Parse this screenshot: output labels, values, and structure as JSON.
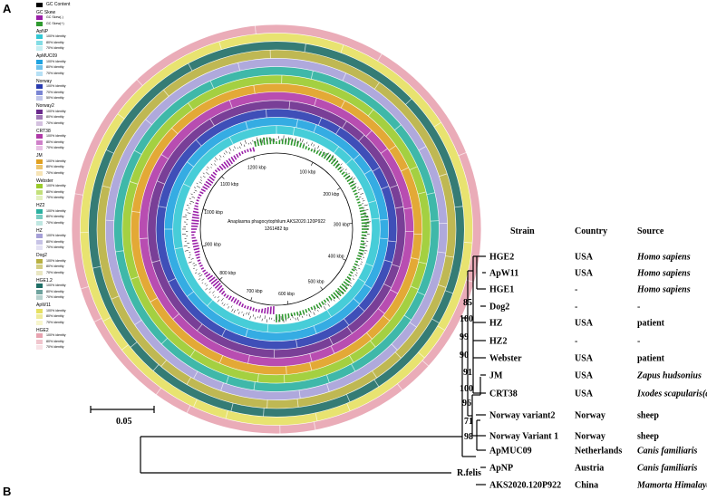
{
  "panel_labels": {
    "a": "A",
    "b": "B"
  },
  "legend": {
    "gc_content": {
      "label": "GC Content",
      "color": "#000000"
    },
    "gc_skew": {
      "title": "GC Skew",
      "items": [
        {
          "label": "GC Skew(-)",
          "color": "#9a1fa8"
        },
        {
          "label": "GC Skew(+)",
          "color": "#2f9a2f"
        }
      ]
    },
    "groups": [
      {
        "title": "ApNP",
        "colors": [
          "#33c8d4",
          "#83dde5",
          "#c6eef2"
        ],
        "labels": [
          "100% identity",
          "80% identity",
          "70% identity"
        ]
      },
      {
        "title": "ApMUC09",
        "colors": [
          "#1fa3e0",
          "#6fc2ec",
          "#b6e0f5"
        ],
        "labels": [
          "100% identity",
          "80% identity",
          "70% identity"
        ]
      },
      {
        "title": "Norway",
        "colors": [
          "#2a3cb0",
          "#7a85d4",
          "#c1c6ea"
        ],
        "labels": [
          "100% identity",
          "70% identity",
          "50% identity"
        ]
      },
      {
        "title": "Norway2",
        "colors": [
          "#6a2a8c",
          "#a27ab8",
          "#d4c1df"
        ],
        "labels": [
          "100% identity",
          "80% identity",
          "70% identity"
        ]
      },
      {
        "title": "CRT38",
        "colors": [
          "#b03aa8",
          "#cf80c9",
          "#e8c1e5"
        ],
        "labels": [
          "100% identity",
          "80% identity",
          "70% identity"
        ]
      },
      {
        "title": "JM",
        "colors": [
          "#e0a020",
          "#ecc56d",
          "#f6e3b5"
        ],
        "labels": [
          "100% identity",
          "80% identity",
          "70% identity"
        ]
      },
      {
        "title": "Webster",
        "colors": [
          "#9acb2c",
          "#c2e07a",
          "#e2f0bf"
        ],
        "labels": [
          "100% identity",
          "80% identity",
          "70% identity"
        ]
      },
      {
        "title": "HZ2",
        "colors": [
          "#2ab0a0",
          "#79ccc2",
          "#bfe6e1"
        ],
        "labels": [
          "100% identity",
          "80% identity",
          "70% identity"
        ]
      },
      {
        "title": "HZ",
        "colors": [
          "#a6a0d8",
          "#c7c3e6",
          "#e3e1f3"
        ],
        "labels": [
          "100% identity",
          "80% identity",
          "70% identity"
        ]
      },
      {
        "title": "Dog2",
        "colors": [
          "#b8b040",
          "#d2cd82",
          "#e9e6c2"
        ],
        "labels": [
          "100% identity",
          "80% identity",
          "70% identity"
        ]
      },
      {
        "title": "HGE1.2",
        "colors": [
          "#1f6e66",
          "#6ea39e",
          "#b7d1ce"
        ],
        "labels": [
          "100% identity",
          "80% identity",
          "70% identity"
        ]
      },
      {
        "title": "ApW11",
        "colors": [
          "#e6e060",
          "#efeb99",
          "#f7f5cc"
        ],
        "labels": [
          "100% identity",
          "80% identity",
          "70% identity"
        ]
      },
      {
        "title": "HGE2",
        "colors": [
          "#e8a3b0",
          "#f0c5cd",
          "#f8e3e7"
        ],
        "labels": [
          "100% identity",
          "80% identity",
          "70% identity"
        ]
      }
    ]
  },
  "ring_map": {
    "center_title": "Anaplasma phagocytophilum AKS2020.120P922",
    "center_length": "1261482 bp",
    "ticks": [
      "100 kbp",
      "200 kbp",
      "300 kbp",
      "400 kbp",
      "500 kbp",
      "600 kbp",
      "700 kbp",
      "800 kbp",
      "900 kbp",
      "1000 kbp",
      "1100 kbp",
      "1200 kbp"
    ],
    "ring_colors": [
      "#33c8d4",
      "#1fa3e0",
      "#2a3cb0",
      "#6a2a8c",
      "#b03aa8",
      "#e0a020",
      "#9acb2c",
      "#2ab0a0",
      "#a6a0d8",
      "#b8b040",
      "#1f6e66",
      "#e6e060",
      "#e8a3b0"
    ]
  },
  "tree": {
    "scale_label": "0.05",
    "headers": {
      "strain": "Strain",
      "country": "Country",
      "source": "Source"
    },
    "rows": [
      {
        "strain": "HGE2",
        "country": "USA",
        "source": "Homo sapiens",
        "italic": true
      },
      {
        "strain": "ApW11",
        "country": "USA",
        "source": "Homo sapiens",
        "italic": true
      },
      {
        "strain": "HGE1",
        "country": "-",
        "source": "Homo sapiens",
        "italic": true
      },
      {
        "strain": "Dog2",
        "country": "-",
        "source": "-",
        "italic": false
      },
      {
        "strain": "HZ",
        "country": "USA",
        "source": "patient",
        "italic": false
      },
      {
        "strain": "HZ2",
        "country": "-",
        "source": "-",
        "italic": false
      },
      {
        "strain": "Webster",
        "country": "USA",
        "source": "patient",
        "italic": false
      },
      {
        "strain": "JM",
        "country": "USA",
        "source": "Zapus hudsonius",
        "italic": true
      },
      {
        "strain": "CRT38",
        "country": "USA",
        "source": "Ixodes scapularis(deer)",
        "italic": true
      },
      {
        "strain": "Norway variant2",
        "country": "Norway",
        "source": "sheep",
        "italic": false
      },
      {
        "strain": "Norway Variant 1",
        "country": "Norway",
        "source": "sheep",
        "italic": false
      },
      {
        "strain": "ApMUC09",
        "country": "Netherlands",
        "source": "Canis familiaris",
        "italic": true
      },
      {
        "strain": "ApNP",
        "country": "Austria",
        "source": "Canis familiaris",
        "italic": true
      },
      {
        "strain": "AKS2020.120P922",
        "country": "China",
        "source": "Mamorta Himalayana",
        "italic": true
      }
    ],
    "outgroup": "R.felis",
    "bootstrap": [
      "85",
      "100",
      "99",
      "90",
      "91",
      "100",
      "96",
      "71",
      "98"
    ]
  }
}
